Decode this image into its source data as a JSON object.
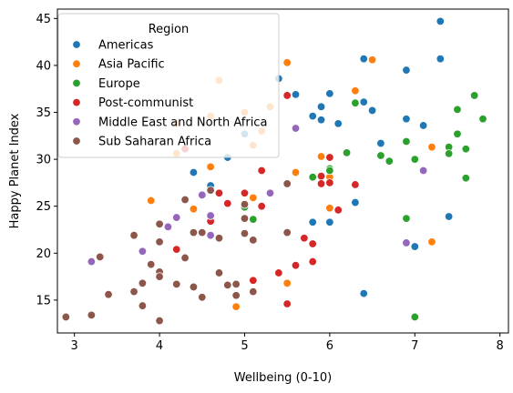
{
  "chart_data": {
    "type": "scatter",
    "title": "",
    "xlabel": "Wellbeing (0-10)",
    "ylabel": "Happy Planet Index",
    "xlim": [
      2.8,
      8.1
    ],
    "ylim": [
      11.5,
      46
    ],
    "xticks": [
      3,
      4,
      5,
      6,
      7,
      8
    ],
    "yticks": [
      15,
      20,
      25,
      30,
      35,
      40,
      45
    ],
    "grid": false,
    "legend": {
      "title": "Region",
      "placement": "top-left"
    },
    "series": [
      {
        "name": "Americas",
        "color": "#1f77b4",
        "points": [
          [
            7.3,
            44.7
          ],
          [
            7.3,
            40.7
          ],
          [
            6.4,
            40.7
          ],
          [
            6.9,
            39.5
          ],
          [
            5.4,
            38.6
          ],
          [
            5.6,
            36.9
          ],
          [
            6.0,
            37.0
          ],
          [
            6.4,
            36.1
          ],
          [
            6.5,
            35.2
          ],
          [
            5.9,
            35.6
          ],
          [
            5.8,
            34.6
          ],
          [
            5.9,
            34.2
          ],
          [
            6.9,
            34.3
          ],
          [
            7.1,
            33.6
          ],
          [
            6.1,
            33.8
          ],
          [
            5.0,
            32.7
          ],
          [
            6.6,
            31.7
          ],
          [
            4.8,
            30.2
          ],
          [
            6.3,
            25.4
          ],
          [
            4.6,
            27.2
          ],
          [
            4.4,
            28.6
          ],
          [
            6.0,
            23.3
          ],
          [
            5.8,
            23.3
          ],
          [
            7.4,
            23.9
          ],
          [
            7.0,
            20.7
          ],
          [
            6.4,
            15.7
          ],
          [
            5.0,
            24.9
          ]
        ]
      },
      {
        "name": "Asia Pacific",
        "color": "#ff7f0e",
        "points": [
          [
            6.5,
            40.6
          ],
          [
            5.5,
            40.3
          ],
          [
            4.7,
            38.4
          ],
          [
            6.3,
            37.3
          ],
          [
            5.3,
            35.6
          ],
          [
            4.2,
            33.8
          ],
          [
            5.0,
            35.0
          ],
          [
            4.6,
            34.6
          ],
          [
            5.1,
            31.5
          ],
          [
            5.2,
            33.0
          ],
          [
            4.2,
            30.6
          ],
          [
            4.6,
            29.2
          ],
          [
            5.6,
            28.6
          ],
          [
            5.9,
            30.3
          ],
          [
            6.0,
            28.1
          ],
          [
            7.2,
            31.3
          ],
          [
            6.0,
            24.8
          ],
          [
            5.1,
            25.9
          ],
          [
            3.9,
            25.6
          ],
          [
            4.4,
            24.7
          ],
          [
            5.5,
            16.8
          ],
          [
            4.9,
            14.3
          ],
          [
            7.2,
            21.2
          ]
        ]
      },
      {
        "name": "Europe",
        "color": "#2ca02c",
        "points": [
          [
            7.7,
            36.8
          ],
          [
            7.5,
            35.3
          ],
          [
            6.3,
            36.0
          ],
          [
            7.8,
            34.3
          ],
          [
            7.5,
            32.7
          ],
          [
            7.6,
            31.1
          ],
          [
            7.4,
            31.3
          ],
          [
            7.4,
            30.6
          ],
          [
            6.6,
            30.4
          ],
          [
            6.7,
            29.8
          ],
          [
            7.0,
            30.0
          ],
          [
            6.9,
            31.9
          ],
          [
            6.0,
            29.0
          ],
          [
            6.2,
            30.7
          ],
          [
            7.6,
            28.0
          ],
          [
            5.8,
            28.1
          ],
          [
            6.0,
            28.8
          ],
          [
            6.9,
            23.7
          ],
          [
            5.1,
            23.6
          ],
          [
            5.0,
            24.9
          ],
          [
            7.0,
            13.2
          ]
        ]
      },
      {
        "name": "Post-communist",
        "color": "#d62728",
        "points": [
          [
            5.5,
            36.8
          ],
          [
            5.2,
            28.8
          ],
          [
            5.9,
            28.2
          ],
          [
            6.0,
            30.2
          ],
          [
            5.9,
            27.4
          ],
          [
            6.3,
            27.3
          ],
          [
            6.0,
            27.5
          ],
          [
            4.7,
            26.4
          ],
          [
            5.0,
            26.4
          ],
          [
            5.2,
            25.0
          ],
          [
            4.6,
            23.8
          ],
          [
            6.1,
            24.6
          ],
          [
            4.8,
            25.3
          ],
          [
            4.6,
            23.4
          ],
          [
            5.7,
            21.6
          ],
          [
            5.8,
            21.0
          ],
          [
            4.2,
            20.4
          ],
          [
            5.8,
            19.1
          ],
          [
            5.6,
            18.7
          ],
          [
            5.4,
            17.9
          ],
          [
            5.1,
            17.1
          ],
          [
            5.5,
            14.6
          ],
          [
            4.3,
            31.1
          ]
        ]
      },
      {
        "name": "Middle East and North Africa",
        "color": "#9467bd",
        "points": [
          [
            5.6,
            33.3
          ],
          [
            7.1,
            28.8
          ],
          [
            5.3,
            26.4
          ],
          [
            4.5,
            26.2
          ],
          [
            4.2,
            23.8
          ],
          [
            4.1,
            22.8
          ],
          [
            4.6,
            21.9
          ],
          [
            3.8,
            20.2
          ],
          [
            3.2,
            19.1
          ],
          [
            6.9,
            21.1
          ],
          [
            4.6,
            24.0
          ]
        ]
      },
      {
        "name": "Sub Saharan Africa",
        "color": "#8c564b",
        "points": [
          [
            4.6,
            26.7
          ],
          [
            5.0,
            25.2
          ],
          [
            5.5,
            27.4
          ],
          [
            4.3,
            25.7
          ],
          [
            5.0,
            23.7
          ],
          [
            4.0,
            23.1
          ],
          [
            4.5,
            22.2
          ],
          [
            4.4,
            22.2
          ],
          [
            5.1,
            21.4
          ],
          [
            4.7,
            21.6
          ],
          [
            5.0,
            22.1
          ],
          [
            5.5,
            22.2
          ],
          [
            3.7,
            21.9
          ],
          [
            4.0,
            21.2
          ],
          [
            4.3,
            19.5
          ],
          [
            3.3,
            19.6
          ],
          [
            3.9,
            18.8
          ],
          [
            4.0,
            18.0
          ],
          [
            4.0,
            17.5
          ],
          [
            4.7,
            17.9
          ],
          [
            3.8,
            16.8
          ],
          [
            4.2,
            16.7
          ],
          [
            4.4,
            16.4
          ],
          [
            4.8,
            16.6
          ],
          [
            4.9,
            16.7
          ],
          [
            3.7,
            15.9
          ],
          [
            4.9,
            15.5
          ],
          [
            5.1,
            15.9
          ],
          [
            4.5,
            15.3
          ],
          [
            3.4,
            15.6
          ],
          [
            3.8,
            14.4
          ],
          [
            2.9,
            13.2
          ],
          [
            3.2,
            13.4
          ],
          [
            4.0,
            12.8
          ]
        ]
      }
    ]
  }
}
